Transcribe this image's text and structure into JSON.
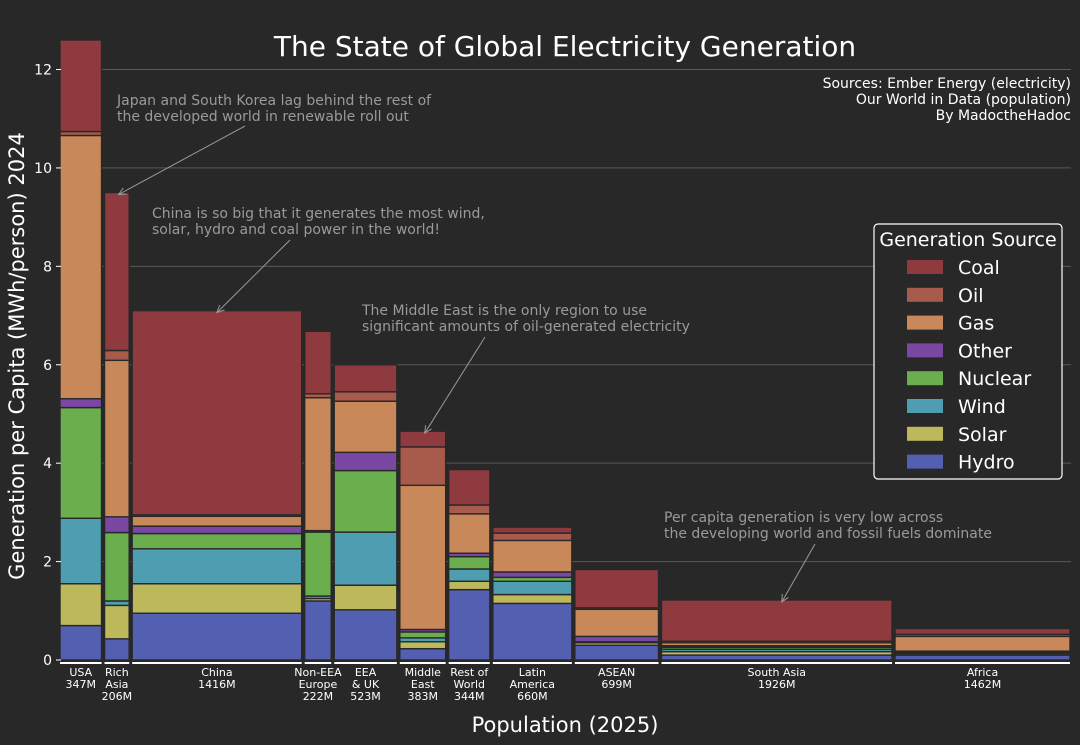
{
  "chart_data": {
    "type": "bar",
    "subtype": "variable-width stacked bar (marimekko)",
    "title": "The State of Global Electricity Generation",
    "sources": [
      "Sources: Ember Energy (electricity)",
      "Our World in Data (population)",
      "By MadoctheHadoc"
    ],
    "xlabel": "Population (2025)",
    "ylabel": "Generation per Capita (MWh/person) 2024",
    "ylim": [
      0,
      12.6
    ],
    "yticks": [
      0,
      2,
      4,
      6,
      8,
      10,
      12
    ],
    "grid": true,
    "legend": {
      "title": "Generation Source",
      "placement": "right"
    },
    "stack_order": [
      "Hydro",
      "Solar",
      "Wind",
      "Nuclear",
      "Other",
      "Gas",
      "Oil",
      "Coal"
    ],
    "legend_order": [
      "Coal",
      "Oil",
      "Gas",
      "Other",
      "Nuclear",
      "Wind",
      "Solar",
      "Hydro"
    ],
    "colors": {
      "Coal": "#8e3a3e",
      "Oil": "#a85a4c",
      "Gas": "#c9885a",
      "Other": "#7a47a3",
      "Nuclear": "#6aae4e",
      "Wind": "#4f9db0",
      "Solar": "#bdb85c",
      "Hydro": "#5360b1"
    },
    "categories": [
      {
        "label": [
          "USA",
          "347M"
        ],
        "population": 347,
        "values": {
          "Hydro": 0.7,
          "Solar": 0.85,
          "Wind": 1.33,
          "Nuclear": 2.25,
          "Other": 0.18,
          "Gas": 5.35,
          "Oil": 0.08,
          "Coal": 1.86
        }
      },
      {
        "label": [
          "Rich",
          "Asia",
          "206M"
        ],
        "population": 206,
        "values": {
          "Hydro": 0.43,
          "Solar": 0.68,
          "Wind": 0.09,
          "Nuclear": 1.39,
          "Other": 0.32,
          "Gas": 3.18,
          "Oil": 0.2,
          "Coal": 3.21
        }
      },
      {
        "label": [
          "China",
          "1416M"
        ],
        "population": 1416,
        "values": {
          "Hydro": 0.95,
          "Solar": 0.6,
          "Wind": 0.71,
          "Nuclear": 0.31,
          "Other": 0.15,
          "Gas": 0.2,
          "Oil": 0.03,
          "Coal": 4.15
        }
      },
      {
        "label": [
          "Non-EEA",
          "Europe",
          "222M"
        ],
        "population": 222,
        "values": {
          "Hydro": 1.2,
          "Solar": 0.05,
          "Wind": 0.05,
          "Nuclear": 1.3,
          "Other": 0.03,
          "Gas": 2.7,
          "Oil": 0.08,
          "Coal": 1.27
        }
      },
      {
        "label": [
          "EEA",
          "& UK",
          "523M"
        ],
        "population": 523,
        "values": {
          "Hydro": 1.02,
          "Solar": 0.5,
          "Wind": 1.08,
          "Nuclear": 1.25,
          "Other": 0.37,
          "Gas": 1.04,
          "Oil": 0.19,
          "Coal": 0.55
        }
      },
      {
        "label": [
          "Middle",
          "East",
          "383M"
        ],
        "population": 383,
        "values": {
          "Hydro": 0.23,
          "Solar": 0.14,
          "Wind": 0.08,
          "Nuclear": 0.12,
          "Other": 0.05,
          "Gas": 2.93,
          "Oil": 0.78,
          "Coal": 0.32
        }
      },
      {
        "label": [
          "Rest of",
          "World",
          "344M"
        ],
        "population": 344,
        "values": {
          "Hydro": 1.43,
          "Solar": 0.17,
          "Wind": 0.25,
          "Nuclear": 0.25,
          "Other": 0.07,
          "Gas": 0.8,
          "Oil": 0.18,
          "Coal": 0.72
        }
      },
      {
        "label": [
          "Latin",
          "America",
          "660M"
        ],
        "population": 660,
        "values": {
          "Hydro": 1.15,
          "Solar": 0.18,
          "Wind": 0.27,
          "Nuclear": 0.08,
          "Other": 0.11,
          "Gas": 0.64,
          "Oil": 0.15,
          "Coal": 0.12
        }
      },
      {
        "label": [
          "ASEAN",
          "699M"
        ],
        "population": 699,
        "values": {
          "Hydro": 0.3,
          "Solar": 0.05,
          "Wind": 0.02,
          "Nuclear": 0.0,
          "Other": 0.11,
          "Gas": 0.55,
          "Oil": 0.03,
          "Coal": 0.78
        }
      },
      {
        "label": [
          "South Asia",
          "1926M"
        ],
        "population": 1926,
        "values": {
          "Hydro": 0.1,
          "Solar": 0.07,
          "Wind": 0.05,
          "Nuclear": 0.04,
          "Other": 0.03,
          "Gas": 0.06,
          "Oil": 0.03,
          "Coal": 0.84
        }
      },
      {
        "label": [
          "Africa",
          "1462M"
        ],
        "population": 1462,
        "values": {
          "Hydro": 0.1,
          "Solar": 0.03,
          "Wind": 0.03,
          "Nuclear": 0.01,
          "Other": 0.01,
          "Gas": 0.3,
          "Oil": 0.04,
          "Coal": 0.12
        }
      }
    ],
    "annotations": [
      {
        "text": [
          "Japan and South Korea lag behind the rest of",
          "the developed world in renewable roll out"
        ],
        "target_category": 1,
        "target_value": 9.5
      },
      {
        "text": [
          "China is so big that it generates the most wind,",
          "solar, hydro and coal power in the world!"
        ],
        "target_category": 2,
        "target_value": 7.1
      },
      {
        "text": [
          "The Middle East is the only region to use",
          "significant amounts of oil-generated electricity"
        ],
        "target_category": 5,
        "target_value": 4.65
      },
      {
        "text": [
          "Per capita generation is very low across",
          "the developing world and fossil fuels dominate"
        ],
        "target_category": 9,
        "target_value": 1.22
      }
    ]
  }
}
